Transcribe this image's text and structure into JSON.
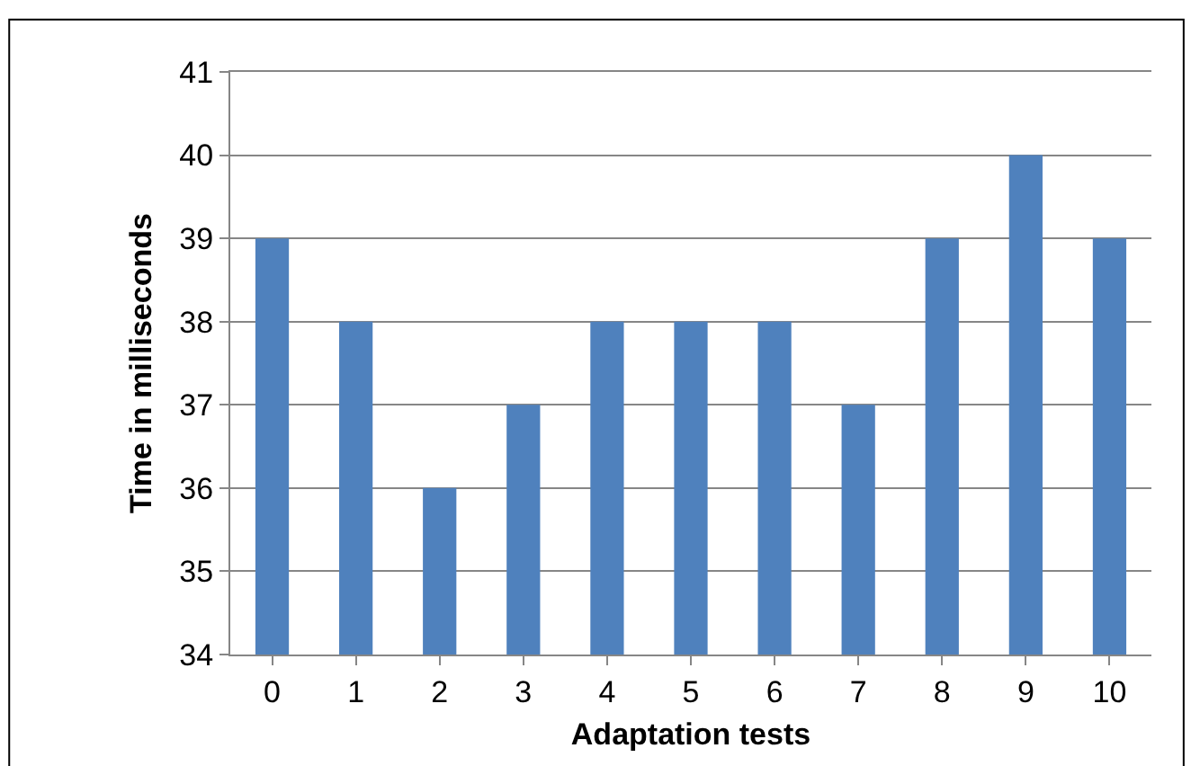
{
  "chart_data": {
    "type": "bar",
    "xlabel": "Adaptation tests",
    "ylabel": "Time in milliseconds",
    "categories": [
      "0",
      "1",
      "2",
      "3",
      "4",
      "5",
      "6",
      "7",
      "8",
      "9",
      "10"
    ],
    "values": [
      39,
      38,
      36,
      37,
      38,
      38,
      38,
      37,
      39,
      40,
      39
    ],
    "color": "#4f81bd",
    "ylim": [
      34,
      41
    ],
    "yticks": [
      34,
      35,
      36,
      37,
      38,
      39,
      40,
      41
    ],
    "grid": "y"
  }
}
